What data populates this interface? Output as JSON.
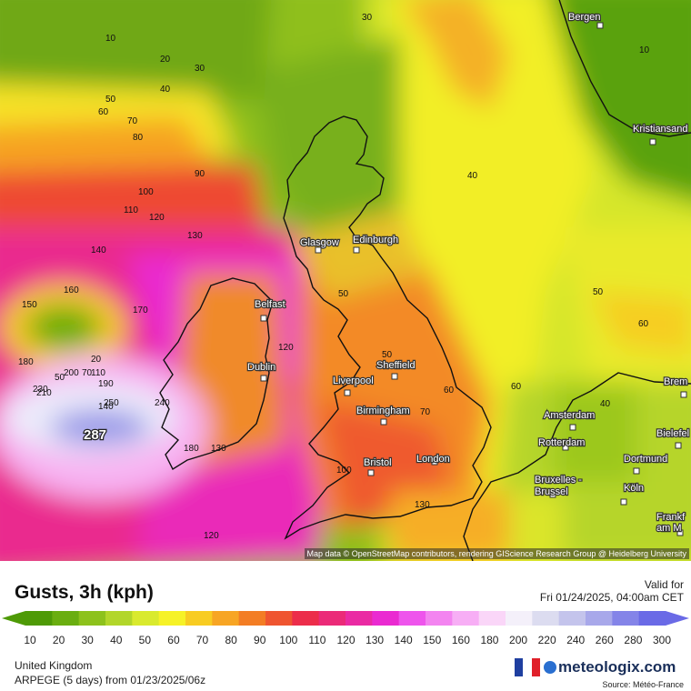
{
  "map": {
    "title": "Gusts, 3h (kph)",
    "valid_label": "Valid for",
    "valid_time": "Fri 01/24/2025, 04:00am CET",
    "attribution": "Map data © OpenStreetMap contributors, rendering GIScience Research Group @ Heidelberg University",
    "region": "United Kingdom",
    "model_run": "ARPEGE (5 days) from 01/23/2025/06z",
    "brand": "meteologix.com",
    "source": "Source: Météo-France",
    "max_value_label": "287",
    "cities": [
      {
        "name": "Bergen"
      },
      {
        "name": "Kristiansand"
      },
      {
        "name": "Glasgow"
      },
      {
        "name": "Edinburgh"
      },
      {
        "name": "Belfast"
      },
      {
        "name": "Dublin"
      },
      {
        "name": "Liverpool"
      },
      {
        "name": "Sheffield"
      },
      {
        "name": "Birmingham"
      },
      {
        "name": "Bristol"
      },
      {
        "name": "London"
      },
      {
        "name": "Amsterdam"
      },
      {
        "name": "Rotterdam"
      },
      {
        "name": "Bruxelles - Brussel"
      },
      {
        "name": "Dortmund"
      },
      {
        "name": "Köln"
      },
      {
        "name": "Bielefel"
      },
      {
        "name": "Frankf am M"
      },
      {
        "name": "Brem"
      }
    ],
    "contour_labels": [
      "10",
      "20",
      "30",
      "40",
      "50",
      "60",
      "70",
      "80",
      "90",
      "100",
      "110",
      "120",
      "130",
      "140",
      "150",
      "160",
      "170",
      "180",
      "190",
      "200",
      "210",
      "230",
      "240",
      "250",
      "30",
      "40",
      "50",
      "60",
      "70",
      "10",
      "50",
      "60",
      "40",
      "50",
      "20",
      "70",
      "110",
      "120",
      "140",
      "180",
      "130",
      "100",
      "130",
      "120",
      "60",
      "50"
    ],
    "legend": {
      "ticks": [
        "10",
        "20",
        "30",
        "40",
        "50",
        "60",
        "70",
        "80",
        "90",
        "100",
        "110",
        "120",
        "130",
        "140",
        "150",
        "160",
        "180",
        "200",
        "220",
        "240",
        "260",
        "280",
        "300"
      ],
      "colors": [
        "#4e9a06",
        "#6aae10",
        "#8dc21c",
        "#b2d62a",
        "#d9ea2e",
        "#f6f227",
        "#f8cc22",
        "#f7a524",
        "#f37d24",
        "#ef5530",
        "#ec2d4a",
        "#eb2a78",
        "#ea2aa3",
        "#ea2ad1",
        "#ee55ec",
        "#f384f0",
        "#f7aef5",
        "#fad6f8",
        "#f4f0fa",
        "#dcdcf0",
        "#c4c4ec",
        "#a8a8ea",
        "#8484e8",
        "#6a6ae6"
      ]
    },
    "flag_colors": [
      "#1f3fa0",
      "#ffffff",
      "#e0202a"
    ]
  }
}
